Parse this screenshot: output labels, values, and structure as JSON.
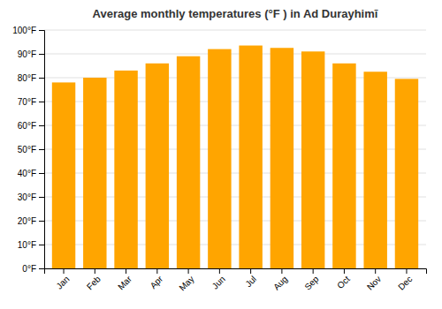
{
  "chart_data": {
    "type": "bar",
    "title": "Average monthly temperatures (°F ) in Ad Durayhimī",
    "categories": [
      "Jan",
      "Feb",
      "Mar",
      "Apr",
      "May",
      "Jun",
      "Jul",
      "Aug",
      "Sep",
      "Oct",
      "Nov",
      "Dec"
    ],
    "values": [
      78,
      80,
      83,
      86,
      89,
      92,
      93.5,
      92.5,
      91,
      86,
      82.5,
      79.5
    ],
    "color": "#FFA500",
    "ylim": [
      0,
      100
    ],
    "yticks": [
      {
        "value": 0,
        "label": "0°F"
      },
      {
        "value": 10,
        "label": "10°F"
      },
      {
        "value": 20,
        "label": "20°F"
      },
      {
        "value": 30,
        "label": "30°F"
      },
      {
        "value": 40,
        "label": "40°F"
      },
      {
        "value": 50,
        "label": "50°F"
      },
      {
        "value": 60,
        "label": "60°F"
      },
      {
        "value": 70,
        "label": "70°F"
      },
      {
        "value": 80,
        "label": "80°F"
      },
      {
        "value": 90,
        "label": "90°F"
      },
      {
        "value": 100,
        "label": "100°F"
      }
    ],
    "grid": true
  }
}
